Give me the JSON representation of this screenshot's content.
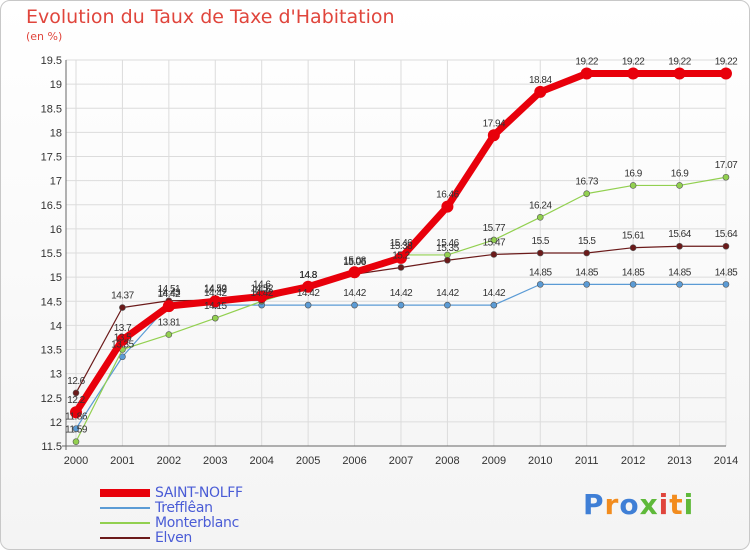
{
  "title": "Evolution du Taux de Taxe d'Habitation",
  "subtitle": "(en %)",
  "logo": {
    "text": "Proxiti",
    "letters": [
      "P",
      "r",
      "o",
      "x",
      "i",
      "t",
      "i"
    ],
    "colors": [
      "#3f7fd6",
      "#f28c1e",
      "#3f7fd6",
      "#5fb93a",
      "#e0453c",
      "#f28c1e",
      "#5fb93a"
    ]
  },
  "chart_data": {
    "type": "line",
    "x": [
      "2000",
      "2001",
      "2002",
      "2003",
      "2004",
      "2005",
      "2006",
      "2007",
      "2008",
      "2009",
      "2010",
      "2011",
      "2012",
      "2013",
      "2014"
    ],
    "ylim": [
      11.5,
      19.5
    ],
    "yticks": [
      "11.5",
      "12",
      "12.5",
      "13",
      "13.5",
      "14",
      "14.5",
      "15",
      "15.5",
      "16",
      "16.5",
      "17",
      "17.5",
      "18",
      "18.5",
      "19",
      "19.5"
    ],
    "grid": true,
    "legend_position": "bottom-left",
    "series": [
      {
        "name": "SAINT-NOLFF",
        "color": "#e8000b",
        "stroke_width": 7,
        "values": [
          12.2,
          13.7,
          14.4,
          14.5,
          14.6,
          14.8,
          15.1,
          15.4,
          16.46,
          17.94,
          18.84,
          19.22,
          19.22,
          19.22,
          19.22
        ],
        "labels": [
          "12.2",
          "13.7",
          "14.42",
          "14.49",
          "14.6",
          "14.8",
          "15.08",
          "15.38",
          "16.46",
          "17.94",
          "18.84",
          "19.22",
          "19.22",
          "19.22",
          "19.22"
        ]
      },
      {
        "name": "Trefflêan",
        "color": "#5b9bd5",
        "stroke_width": 1.2,
        "values": [
          11.86,
          13.35,
          14.43,
          14.42,
          14.42,
          14.42,
          14.42,
          14.42,
          14.42,
          14.42,
          14.85,
          14.85,
          14.85,
          14.85,
          14.85
        ],
        "labels": [
          "11.86",
          "13.35",
          "14.43",
          "14.42",
          "14.42",
          "14.42",
          "14.42",
          "14.42",
          "14.42",
          "14.42",
          "14.85",
          "14.85",
          "14.85",
          "14.85",
          "14.85"
        ]
      },
      {
        "name": "Monterblanc",
        "color": "#92d050",
        "stroke_width": 1.2,
        "values": [
          11.59,
          13.5,
          13.81,
          14.15,
          14.5,
          14.8,
          15.06,
          15.46,
          15.46,
          15.77,
          16.24,
          16.73,
          16.9,
          16.9,
          17.07
        ],
        "labels": [
          "11.59",
          "13.5",
          "13.81",
          "14.15",
          "14.5",
          "14.8",
          "15.06",
          "15.46",
          "15.46",
          "15.77",
          "16.24",
          "16.73",
          "16.9",
          "16.9",
          "17.07"
        ]
      },
      {
        "name": "Elven",
        "color": "#6b1a1a",
        "stroke_width": 1.2,
        "values": [
          12.6,
          14.37,
          14.51,
          14.52,
          14.52,
          14.8,
          15.06,
          15.2,
          15.35,
          15.47,
          15.5,
          15.5,
          15.61,
          15.64,
          15.64
        ],
        "labels": [
          "12.6",
          "14.37",
          "14.51",
          "14.52",
          "14.52",
          "14.8",
          "15.06",
          "15.2",
          "15.35",
          "15.47",
          "15.5",
          "15.5",
          "15.61",
          "15.64",
          "15.64"
        ]
      }
    ]
  }
}
